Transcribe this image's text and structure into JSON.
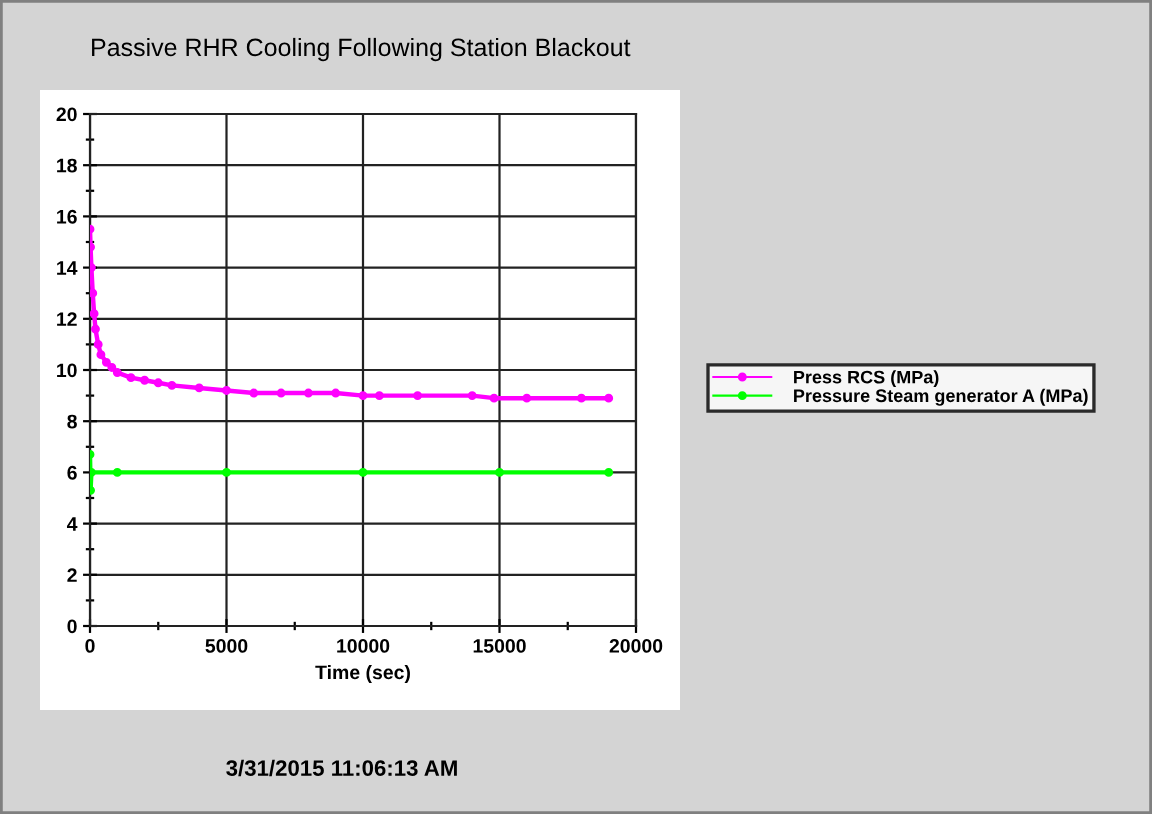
{
  "chart_data": {
    "type": "line",
    "title": "Passive RHR Cooling Following Station Blackout",
    "xlabel": "Time (sec)",
    "annotations": [
      "3/31/2015 11:06:13 AM"
    ],
    "xlim": [
      0,
      20000
    ],
    "xticks": [
      0,
      5000,
      10000,
      15000,
      20000
    ],
    "ylim": [
      0,
      20
    ],
    "yticks": [
      0,
      2,
      4,
      6,
      8,
      10,
      12,
      14,
      16,
      18,
      20
    ],
    "grid": true,
    "legend": "right",
    "marker": "circle",
    "line_style": "solid",
    "series": [
      {
        "name": "Press RCS (MPa)",
        "color": "#ff00ff",
        "x": [
          0,
          20,
          50,
          100,
          150,
          200,
          300,
          400,
          600,
          800,
          1000,
          1500,
          2000,
          2500,
          3000,
          4000,
          5000,
          6000,
          7000,
          8000,
          9000,
          10000,
          10600,
          12000,
          14000,
          14800,
          16000,
          18000,
          19000
        ],
        "values": [
          15.5,
          14.8,
          14.0,
          13.0,
          12.2,
          11.6,
          11.0,
          10.6,
          10.3,
          10.1,
          9.9,
          9.7,
          9.6,
          9.5,
          9.4,
          9.3,
          9.2,
          9.1,
          9.1,
          9.1,
          9.1,
          9.0,
          9.0,
          9.0,
          9.0,
          8.9,
          8.9,
          8.9,
          8.9
        ]
      },
      {
        "name": "Pressure Steam generator A (MPa)",
        "color": "#00ff00",
        "x": [
          0,
          20,
          50,
          1000,
          5000,
          10000,
          15000,
          19000
        ],
        "values": [
          6.7,
          5.3,
          6.0,
          6.0,
          6.0,
          6.0,
          6.0,
          6.0
        ]
      }
    ]
  }
}
